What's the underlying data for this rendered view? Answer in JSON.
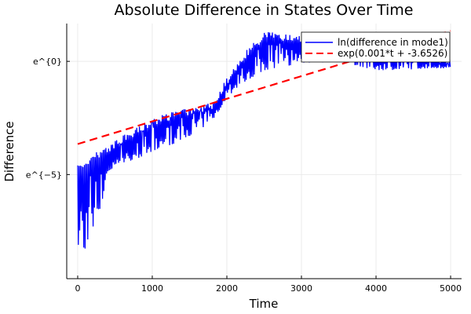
{
  "chart_data": {
    "type": "line",
    "title": "Absolute Difference in States Over Time",
    "xlabel": "Time",
    "ylabel": "Difference",
    "xlim": [
      -147,
      5147
    ],
    "ylim_log": [
      -9.6,
      1.67
    ],
    "xticks": [
      {
        "value": 0,
        "label": "0"
      },
      {
        "value": 1000,
        "label": "1000"
      },
      {
        "value": 2000,
        "label": "2000"
      },
      {
        "value": 3000,
        "label": "3000"
      },
      {
        "value": 4000,
        "label": "4000"
      },
      {
        "value": 5000,
        "label": "5000"
      }
    ],
    "yticks": [
      {
        "value": 0,
        "label": "e^{0}"
      },
      {
        "value": -5,
        "label": "e^{−5}"
      }
    ],
    "grid": true,
    "legend_position": "top-right",
    "series": [
      {
        "name": "ln(difference in mode1)",
        "color": "#0000ff",
        "style": "solid oscillating",
        "envelope_t": [
          0,
          100,
          200,
          500,
          1000,
          1500,
          1800,
          2000,
          2200,
          2500,
          3000,
          3500,
          4000,
          5000
        ],
        "envelope_upper_log": [
          -4.6,
          -4.3,
          -4.1,
          -3.5,
          -2.5,
          -2.0,
          -1.8,
          -0.7,
          0.3,
          1.3,
          1.2,
          1.0,
          0.5,
          0.2
        ],
        "envelope_lower_log": [
          -9.3,
          -8.4,
          -7.5,
          -4.6,
          -4.1,
          -3.3,
          -2.7,
          -1.6,
          -1.0,
          -0.4,
          -0.1,
          0.0,
          -0.4,
          -0.3
        ]
      },
      {
        "name": "exp(0.001*t + -3.6526)",
        "color": "#ff0000",
        "style": "dashed",
        "slope": 0.001,
        "intercept": -3.6526,
        "t_range": [
          0,
          5000
        ]
      }
    ]
  }
}
